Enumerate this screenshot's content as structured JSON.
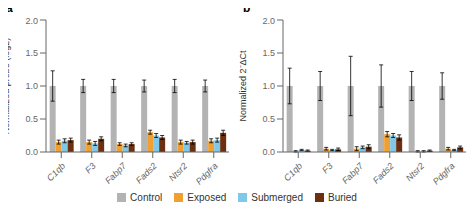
{
  "chart_data": [
    {
      "type": "bar",
      "title": "a",
      "ylabel": "Normalized probe (log2)",
      "categories": [
        "C1qb",
        "F3",
        "Fabp7",
        "Fads2",
        "Ntsr2",
        "Pdgfra"
      ],
      "series": [
        {
          "name": "Control",
          "color": "#b3b3b3",
          "values": [
            1.0,
            1.0,
            1.0,
            1.0,
            1.0,
            1.0
          ],
          "errors": [
            0.23,
            0.1,
            0.1,
            0.09,
            0.1,
            0.09
          ]
        },
        {
          "name": "Exposed",
          "color": "#f0a030",
          "values": [
            0.15,
            0.15,
            0.12,
            0.3,
            0.15,
            0.17
          ],
          "errors": [
            0.03,
            0.03,
            0.02,
            0.03,
            0.03,
            0.03
          ]
        },
        {
          "name": "Submerged",
          "color": "#80c8e8",
          "values": [
            0.17,
            0.13,
            0.1,
            0.25,
            0.14,
            0.18
          ],
          "errors": [
            0.03,
            0.03,
            0.02,
            0.03,
            0.02,
            0.03
          ]
        },
        {
          "name": "Buried",
          "color": "#6b3010",
          "values": [
            0.18,
            0.2,
            0.12,
            0.22,
            0.15,
            0.29
          ],
          "errors": [
            0.03,
            0.03,
            0.02,
            0.03,
            0.03,
            0.04
          ]
        }
      ],
      "ylim": [
        0,
        2.0
      ],
      "yticks": [
        {
          "value": 0,
          "label": "0.0"
        },
        0.5,
        {
          "value": 1,
          "label": "1.0"
        },
        1.5,
        {
          "value": 2,
          "label": "2.0"
        }
      ],
      "legend": "bottom"
    },
    {
      "type": "bar",
      "title": "b",
      "ylabel": "Normalized 2⁻ΔCt",
      "categories": [
        "C1qb",
        "F3",
        "Fabp7",
        "Fads2",
        "Ntsr2",
        "Pdgfra"
      ],
      "series": [
        {
          "name": "Control",
          "color": "#b3b3b3",
          "values": [
            1.0,
            1.0,
            1.0,
            1.0,
            1.0,
            1.0
          ],
          "errors": [
            0.27,
            0.22,
            0.45,
            0.32,
            0.22,
            0.2
          ]
        },
        {
          "name": "Exposed",
          "color": "#f0a030",
          "values": [
            0.01,
            0.05,
            0.05,
            0.27,
            0.01,
            0.05
          ],
          "errors": [
            0.01,
            0.02,
            0.03,
            0.04,
            0.01,
            0.02
          ]
        },
        {
          "name": "Submerged",
          "color": "#80c8e8",
          "values": [
            0.03,
            0.03,
            0.07,
            0.25,
            0.01,
            0.03
          ],
          "errors": [
            0.01,
            0.01,
            0.02,
            0.03,
            0.01,
            0.01
          ]
        },
        {
          "name": "Buried",
          "color": "#6b3010",
          "values": [
            0.02,
            0.04,
            0.08,
            0.22,
            0.02,
            0.07
          ],
          "errors": [
            0.01,
            0.02,
            0.03,
            0.04,
            0.01,
            0.02
          ]
        }
      ],
      "ylim": [
        0,
        2.0
      ],
      "yticks": [
        {
          "value": 0,
          "label": "0.0"
        },
        0.5,
        {
          "value": 1,
          "label": "1.0"
        },
        1.5,
        {
          "value": 2,
          "label": "2.0"
        }
      ],
      "legend": "bottom"
    }
  ]
}
